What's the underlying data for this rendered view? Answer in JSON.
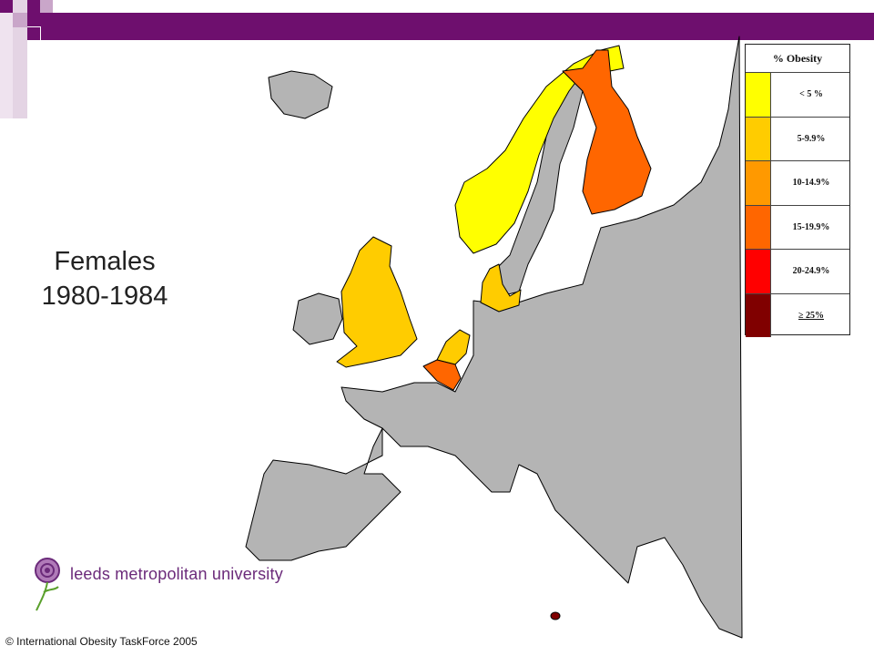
{
  "title": {
    "line1": "Females",
    "line2": "1980-1984"
  },
  "legend": {
    "title": "% Obesity",
    "items": [
      {
        "label": "< 5 %",
        "color": "#ffff00"
      },
      {
        "label": "5-9.9%",
        "color": "#ffcc00"
      },
      {
        "label": "10-14.9%",
        "color": "#ff9900"
      },
      {
        "label": "15-19.9%",
        "color": "#ff6600"
      },
      {
        "label": "20-24.9%",
        "color": "#ff0000"
      },
      {
        "label": "≥ 25%",
        "color": "#800000"
      }
    ]
  },
  "colors": {
    "no_data": "#b4b4b4",
    "sea": "#ffffff",
    "border": "#000000",
    "accent": "#6e0f6e"
  },
  "countries": [
    {
      "name": "Norway",
      "category": "< 5 %"
    },
    {
      "name": "Finland",
      "category": "15-19.9%"
    },
    {
      "name": "United Kingdom",
      "category": "5-9.9%"
    },
    {
      "name": "Denmark",
      "category": "5-9.9%"
    },
    {
      "name": "Netherlands",
      "category": "5-9.9%"
    },
    {
      "name": "Belgium",
      "category": "15-19.9%"
    },
    {
      "name": "Malta",
      "category": "≥ 25%"
    }
  ],
  "logo": {
    "text": "leeds metropolitan university"
  },
  "footer": {
    "copyright": "© International  Obesity TaskForce 2005"
  }
}
